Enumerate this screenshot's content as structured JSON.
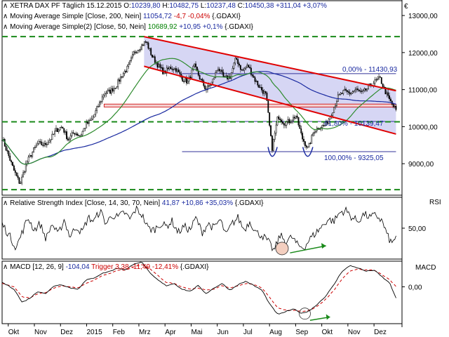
{
  "chart_data": [
    {
      "type": "candlestick",
      "panel": "price",
      "title": "XETRA DAX PF Täglich",
      "date": "15.12.2015",
      "ohlc_text": {
        "open_label": "O:",
        "open": "10239,80",
        "high_label": "H:",
        "high": "10482,75",
        "low_label": "L:",
        "low": "10237,48",
        "close_label": "C:",
        "close": "10450,38",
        "change": "+311,04",
        "change_pct": "+3,07%"
      },
      "indicators": [
        {
          "name": "Moving Average Simple [Close, 200, Nein]",
          "value": "11054,72",
          "change": "-4,7",
          "change_pct": "-0,04%",
          "symbol": "{.GDAXI}",
          "color": "#1a2aa0"
        },
        {
          "name": "Moving Average Simple(2) [Close, 50, Nein]",
          "value": "10689,92",
          "change": "+10,95",
          "change_pct": "+0,1%",
          "symbol": "{.GDAXI}",
          "color": "#2e8b2e"
        }
      ],
      "currency_label": "€",
      "y_ticks": [
        "13000,00",
        "12000,00",
        "11000,00",
        "10000,00",
        "9000,00"
      ],
      "y_tick_values": [
        13000,
        12000,
        11000,
        10000,
        9000
      ],
      "ylim": [
        8150,
        13400
      ],
      "x_months": [
        "Okt",
        "Nov",
        "Dez",
        "2015",
        "Feb",
        "Mrz",
        "Apr",
        "Mai",
        "Jun",
        "Jul",
        "Aug",
        "Sep",
        "Okt",
        "Nov",
        "Dez"
      ],
      "fib_labels": [
        {
          "text": "0,00% - 11430,93",
          "value": 11430.93
        },
        {
          "text": "61,80% - 10139,47",
          "value": 10139.47
        },
        {
          "text": "100,00% - 9325,05",
          "value": 9325.05
        }
      ],
      "support_lines": [
        12430,
        10130,
        8300
      ],
      "channel_upper": [
        {
          "x": 0.355,
          "y": 12430
        },
        {
          "x": 0.985,
          "y": 10970
        }
      ],
      "channel_lower": [
        {
          "x": 0.355,
          "y": 11630
        },
        {
          "x": 0.985,
          "y": 9800
        }
      ],
      "resistance_band": [
        10530,
        10610
      ],
      "close_anchors": [
        [
          0.0,
          9700
        ],
        [
          0.015,
          9250
        ],
        [
          0.03,
          8800
        ],
        [
          0.045,
          8450
        ],
        [
          0.06,
          9000
        ],
        [
          0.075,
          9300
        ],
        [
          0.09,
          9550
        ],
        [
          0.105,
          9500
        ],
        [
          0.12,
          9650
        ],
        [
          0.135,
          9900
        ],
        [
          0.15,
          10000
        ],
        [
          0.165,
          9650
        ],
        [
          0.18,
          9850
        ],
        [
          0.195,
          9750
        ],
        [
          0.21,
          10050
        ],
        [
          0.225,
          10200
        ],
        [
          0.24,
          10550
        ],
        [
          0.255,
          10900
        ],
        [
          0.27,
          10950
        ],
        [
          0.285,
          11100
        ],
        [
          0.3,
          11400
        ],
        [
          0.315,
          11600
        ],
        [
          0.33,
          12000
        ],
        [
          0.345,
          12150
        ],
        [
          0.36,
          12300
        ],
        [
          0.375,
          11900
        ],
        [
          0.39,
          11650
        ],
        [
          0.405,
          11450
        ],
        [
          0.42,
          11600
        ],
        [
          0.435,
          11550
        ],
        [
          0.45,
          11300
        ],
        [
          0.465,
          11200
        ],
        [
          0.48,
          11650
        ],
        [
          0.495,
          11300
        ],
        [
          0.51,
          11000
        ],
        [
          0.525,
          11200
        ],
        [
          0.54,
          11600
        ],
        [
          0.555,
          11300
        ],
        [
          0.57,
          11350
        ],
        [
          0.585,
          11850
        ],
        [
          0.6,
          11500
        ],
        [
          0.615,
          11650
        ],
        [
          0.63,
          11300
        ],
        [
          0.645,
          11050
        ],
        [
          0.66,
          10850
        ],
        [
          0.675,
          9400
        ],
        [
          0.69,
          10300
        ],
        [
          0.705,
          10100
        ],
        [
          0.72,
          10150
        ],
        [
          0.735,
          10300
        ],
        [
          0.75,
          9700
        ],
        [
          0.765,
          9400
        ],
        [
          0.78,
          9900
        ],
        [
          0.795,
          10000
        ],
        [
          0.81,
          10050
        ],
        [
          0.825,
          10400
        ],
        [
          0.84,
          10800
        ],
        [
          0.855,
          10950
        ],
        [
          0.87,
          10900
        ],
        [
          0.885,
          11000
        ],
        [
          0.9,
          10900
        ],
        [
          0.915,
          11050
        ],
        [
          0.93,
          11200
        ],
        [
          0.945,
          11300
        ],
        [
          0.96,
          10900
        ],
        [
          0.975,
          10600
        ],
        [
          0.985,
          10450
        ]
      ]
    },
    {
      "type": "line",
      "panel": "rsi",
      "title": "Relative Strength Index [Close, 14, 30, 70, Nein]",
      "value": "41,87",
      "change": "+10,86",
      "change_pct": "+35,03%",
      "symbol": "{.GDAXI}",
      "axis_label": "RSI",
      "y_ticks": [
        "50,00"
      ],
      "y_tick_values": [
        50
      ],
      "ylim": [
        15,
        85
      ],
      "anchors": [
        [
          0.0,
          55
        ],
        [
          0.02,
          40
        ],
        [
          0.035,
          28
        ],
        [
          0.05,
          45
        ],
        [
          0.065,
          62
        ],
        [
          0.08,
          48
        ],
        [
          0.095,
          55
        ],
        [
          0.11,
          38
        ],
        [
          0.125,
          55
        ],
        [
          0.14,
          42
        ],
        [
          0.155,
          60
        ],
        [
          0.17,
          40
        ],
        [
          0.185,
          52
        ],
        [
          0.2,
          45
        ],
        [
          0.215,
          62
        ],
        [
          0.23,
          58
        ],
        [
          0.245,
          70
        ],
        [
          0.26,
          55
        ],
        [
          0.275,
          65
        ],
        [
          0.29,
          62
        ],
        [
          0.305,
          68
        ],
        [
          0.32,
          60
        ],
        [
          0.335,
          72
        ],
        [
          0.35,
          65
        ],
        [
          0.365,
          50
        ],
        [
          0.38,
          48
        ],
        [
          0.395,
          55
        ],
        [
          0.41,
          52
        ],
        [
          0.425,
          58
        ],
        [
          0.44,
          45
        ],
        [
          0.455,
          52
        ],
        [
          0.47,
          48
        ],
        [
          0.485,
          62
        ],
        [
          0.5,
          45
        ],
        [
          0.515,
          55
        ],
        [
          0.53,
          50
        ],
        [
          0.545,
          60
        ],
        [
          0.56,
          42
        ],
        [
          0.575,
          55
        ],
        [
          0.59,
          62
        ],
        [
          0.605,
          48
        ],
        [
          0.62,
          58
        ],
        [
          0.635,
          45
        ],
        [
          0.65,
          42
        ],
        [
          0.665,
          35
        ],
        [
          0.68,
          24
        ],
        [
          0.695,
          42
        ],
        [
          0.71,
          35
        ],
        [
          0.725,
          40
        ],
        [
          0.74,
          30
        ],
        [
          0.755,
          28
        ],
        [
          0.77,
          38
        ],
        [
          0.785,
          45
        ],
        [
          0.8,
          52
        ],
        [
          0.815,
          60
        ],
        [
          0.83,
          58
        ],
        [
          0.845,
          68
        ],
        [
          0.86,
          70
        ],
        [
          0.875,
          62
        ],
        [
          0.89,
          58
        ],
        [
          0.905,
          66
        ],
        [
          0.92,
          62
        ],
        [
          0.935,
          65
        ],
        [
          0.95,
          58
        ],
        [
          0.965,
          40
        ],
        [
          0.975,
          32
        ],
        [
          0.985,
          42
        ]
      ]
    },
    {
      "type": "line",
      "panel": "macd",
      "title": "MACD [12, 26, 9]",
      "value": "-104,04",
      "trigger_label": "Trigger",
      "trigger_value": "3,38",
      "trigger_change": "-11,49",
      "trigger_change_pct": "-12,41%",
      "symbol": "{.GDAXI}",
      "axis_label": "MACD",
      "y_ticks": [
        "0,00"
      ],
      "y_tick_values": [
        0
      ],
      "ylim": [
        -330,
        230
      ],
      "series": [
        {
          "kind": "macd",
          "color": "#000000",
          "anchors": [
            [
              0.0,
              40
            ],
            [
              0.03,
              -20
            ],
            [
              0.05,
              -140
            ],
            [
              0.07,
              -100
            ],
            [
              0.09,
              -40
            ],
            [
              0.11,
              -60
            ],
            [
              0.13,
              10
            ],
            [
              0.15,
              20
            ],
            [
              0.17,
              -10
            ],
            [
              0.19,
              -20
            ],
            [
              0.21,
              60
            ],
            [
              0.23,
              80
            ],
            [
              0.25,
              120
            ],
            [
              0.27,
              140
            ],
            [
              0.29,
              170
            ],
            [
              0.31,
              150
            ],
            [
              0.33,
              210
            ],
            [
              0.35,
              220
            ],
            [
              0.37,
              120
            ],
            [
              0.39,
              60
            ],
            [
              0.41,
              10
            ],
            [
              0.43,
              30
            ],
            [
              0.45,
              -20
            ],
            [
              0.47,
              -40
            ],
            [
              0.49,
              10
            ],
            [
              0.51,
              -60
            ],
            [
              0.53,
              -10
            ],
            [
              0.55,
              30
            ],
            [
              0.57,
              -30
            ],
            [
              0.59,
              20
            ],
            [
              0.61,
              50
            ],
            [
              0.63,
              10
            ],
            [
              0.65,
              -30
            ],
            [
              0.67,
              -160
            ],
            [
              0.69,
              -250
            ],
            [
              0.71,
              -220
            ],
            [
              0.73,
              -200
            ],
            [
              0.75,
              -240
            ],
            [
              0.77,
              -210
            ],
            [
              0.79,
              -150
            ],
            [
              0.81,
              -80
            ],
            [
              0.83,
              20
            ],
            [
              0.85,
              140
            ],
            [
              0.87,
              190
            ],
            [
              0.89,
              170
            ],
            [
              0.91,
              140
            ],
            [
              0.93,
              150
            ],
            [
              0.95,
              90
            ],
            [
              0.97,
              30
            ],
            [
              0.985,
              -104
            ]
          ]
        },
        {
          "kind": "trigger",
          "color": "#cc0000",
          "anchors": [
            [
              0.0,
              30
            ],
            [
              0.03,
              0
            ],
            [
              0.05,
              -90
            ],
            [
              0.07,
              -100
            ],
            [
              0.09,
              -60
            ],
            [
              0.11,
              -50
            ],
            [
              0.13,
              -10
            ],
            [
              0.15,
              10
            ],
            [
              0.17,
              0
            ],
            [
              0.19,
              -10
            ],
            [
              0.21,
              30
            ],
            [
              0.23,
              60
            ],
            [
              0.25,
              100
            ],
            [
              0.27,
              120
            ],
            [
              0.29,
              150
            ],
            [
              0.31,
              150
            ],
            [
              0.33,
              180
            ],
            [
              0.35,
              200
            ],
            [
              0.37,
              160
            ],
            [
              0.39,
              100
            ],
            [
              0.41,
              40
            ],
            [
              0.43,
              30
            ],
            [
              0.45,
              0
            ],
            [
              0.47,
              -20
            ],
            [
              0.49,
              -10
            ],
            [
              0.51,
              -30
            ],
            [
              0.53,
              -20
            ],
            [
              0.55,
              10
            ],
            [
              0.57,
              -10
            ],
            [
              0.59,
              10
            ],
            [
              0.61,
              30
            ],
            [
              0.63,
              20
            ],
            [
              0.65,
              -10
            ],
            [
              0.67,
              -100
            ],
            [
              0.69,
              -190
            ],
            [
              0.71,
              -210
            ],
            [
              0.73,
              -210
            ],
            [
              0.75,
              -220
            ],
            [
              0.77,
              -210
            ],
            [
              0.79,
              -170
            ],
            [
              0.81,
              -110
            ],
            [
              0.83,
              -30
            ],
            [
              0.85,
              70
            ],
            [
              0.87,
              140
            ],
            [
              0.89,
              160
            ],
            [
              0.91,
              150
            ],
            [
              0.93,
              150
            ],
            [
              0.95,
              110
            ],
            [
              0.97,
              60
            ],
            [
              0.985,
              3.38
            ]
          ]
        }
      ]
    }
  ]
}
